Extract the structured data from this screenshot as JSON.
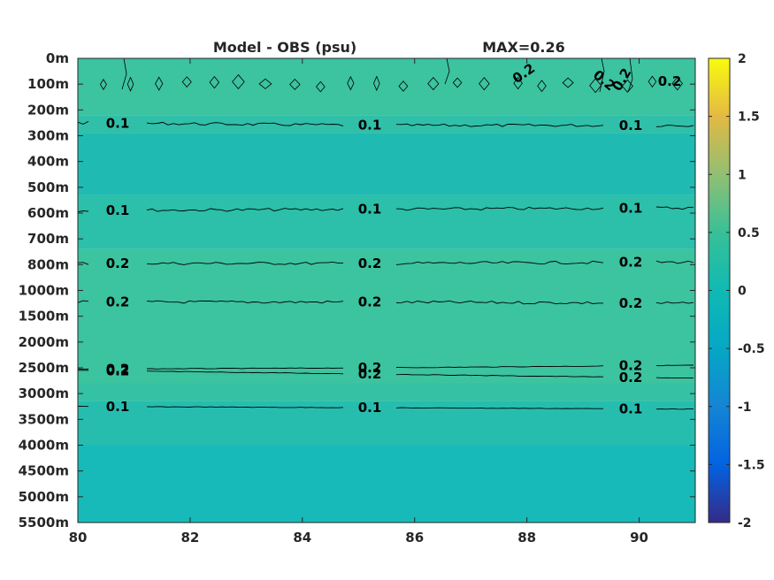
{
  "chart_data": {
    "type": "heatmap",
    "title_left": "Model - OBS (psu)",
    "title_right": "MAX=0.26",
    "xlabel": "",
    "ylabel": "",
    "x_range": [
      80,
      91
    ],
    "x_ticks": [
      "80",
      "82",
      "84",
      "86",
      "88",
      "90"
    ],
    "y_ticks": [
      "0m",
      "100m",
      "200m",
      "300m",
      "400m",
      "500m",
      "600m",
      "700m",
      "800m",
      "1000m",
      "1500m",
      "2000m",
      "2500m",
      "3000m",
      "3500m",
      "4000m",
      "4500m",
      "5000m",
      "5500m"
    ],
    "colorbar": {
      "range": [
        -2,
        2
      ],
      "ticks": [
        "2",
        "1.5",
        "1",
        "0.5",
        "0",
        "-0.5",
        "-1",
        "-1.5",
        "-2"
      ],
      "colormap": "parula"
    },
    "field_bands": [
      {
        "from_level": 0,
        "to_level": 2.2,
        "value": 0.22,
        "color": "#3cc3a0"
      },
      {
        "from_level": 2.2,
        "to_level": 2.9,
        "value": 0.14,
        "color": "#30bfa8"
      },
      {
        "from_level": 2.9,
        "to_level": 5.3,
        "value": 0.04,
        "color": "#1fbbb3"
      },
      {
        "from_level": 5.3,
        "to_level": 7.4,
        "value": 0.12,
        "color": "#2cbfaa"
      },
      {
        "from_level": 7.4,
        "to_level": 12.6,
        "value": 0.22,
        "color": "#3cc3a0"
      },
      {
        "from_level": 12.6,
        "to_level": 13.3,
        "value": 0.16,
        "color": "#34c1a4"
      },
      {
        "from_level": 13.3,
        "to_level": 15.0,
        "value": 0.08,
        "color": "#26bdaf"
      },
      {
        "from_level": 15.0,
        "to_level": 18.0,
        "value": 0.0,
        "color": "#17bab8"
      }
    ],
    "contours": [
      {
        "level": 0.1,
        "depth_index": [
          2.5,
          2.6,
          2.6
        ],
        "labels": [
          "0.1",
          "0.1",
          "0.1"
        ]
      },
      {
        "level": 0.1,
        "depth_index": [
          5.9,
          5.85,
          5.8
        ],
        "labels": [
          "0.1",
          "0.1",
          "0.1"
        ]
      },
      {
        "level": 0.2,
        "depth_index": [
          7.95,
          7.95,
          7.9
        ],
        "labels": [
          "0.2",
          "0.2",
          "0.2"
        ]
      },
      {
        "level": 0.2,
        "depth_index": [
          9.45,
          9.45,
          9.5
        ],
        "labels": [
          "0.2",
          "0.2",
          "0.2"
        ]
      },
      {
        "level": 0.2,
        "depth_index": [
          12.05,
          12.0,
          11.9
        ],
        "labels": [
          "0.2",
          "0.2",
          "0.2"
        ]
      },
      {
        "level": 0.2,
        "depth_index": [
          12.1,
          12.25,
          12.4
        ],
        "labels": [
          "0.2",
          "0.2",
          "0.2"
        ]
      },
      {
        "level": 0.1,
        "depth_index": [
          13.5,
          13.55,
          13.6
        ],
        "labels": [
          "0.1",
          "0.1",
          "0.1"
        ]
      }
    ],
    "top_contour_labels": [
      "0.2",
      "0.2",
      "0.2",
      "0.2"
    ],
    "max_value": 0.26
  }
}
